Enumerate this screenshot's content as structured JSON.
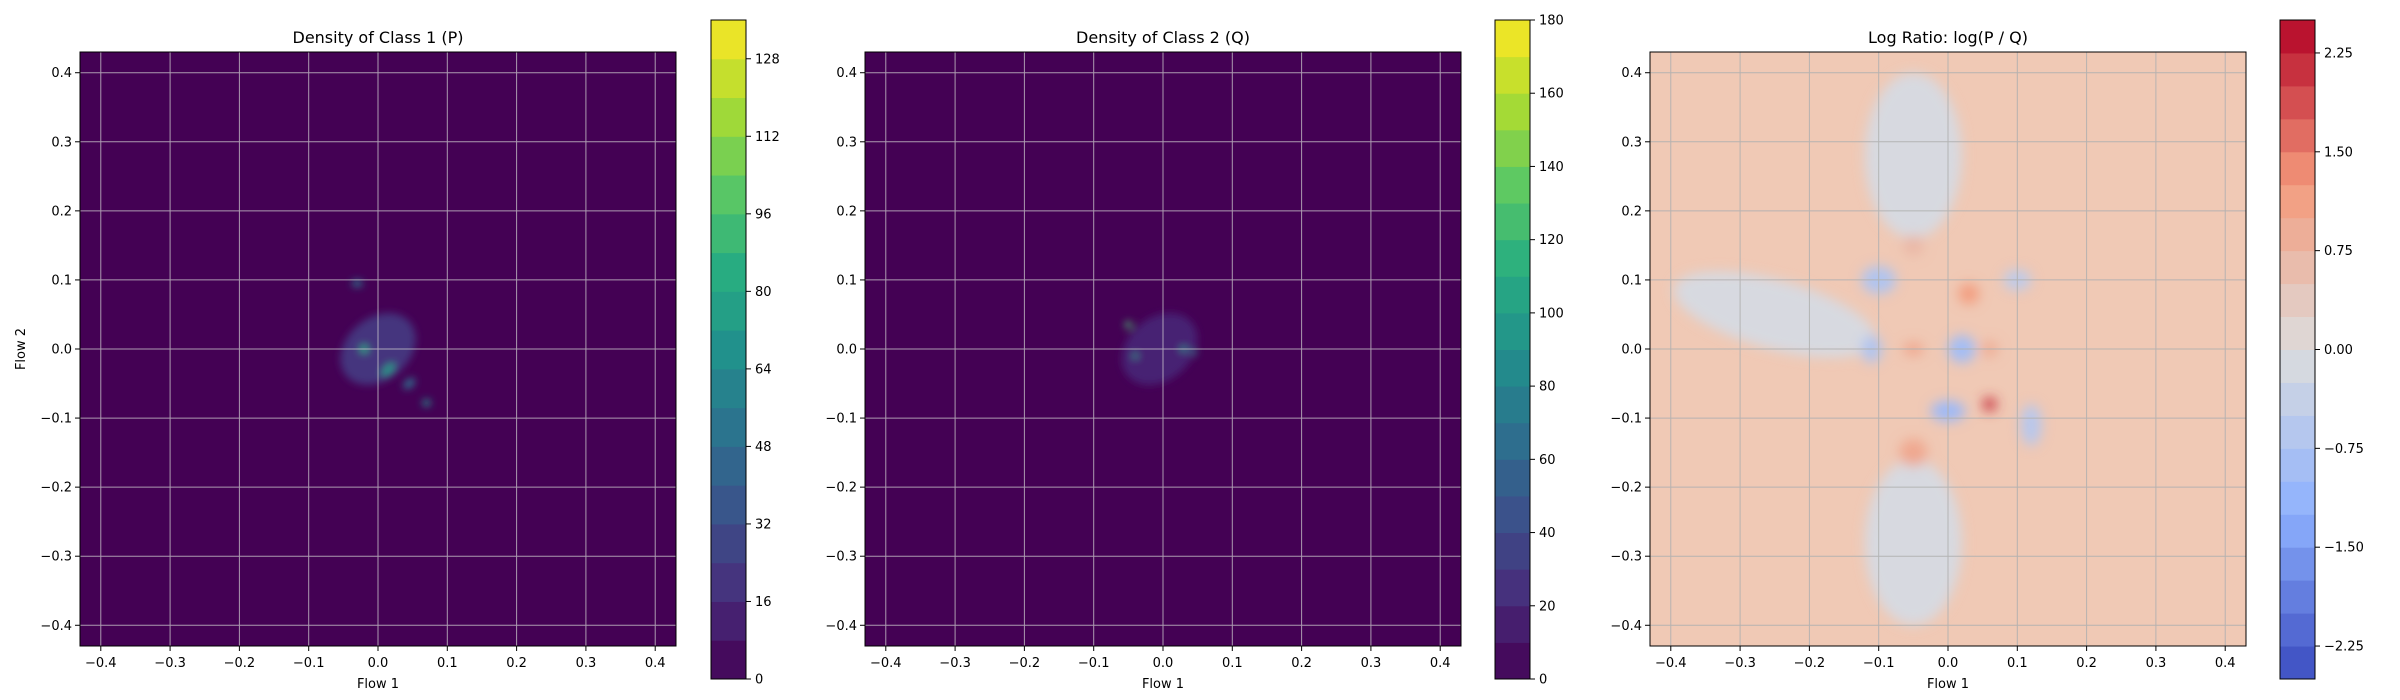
{
  "chart_data": [
    {
      "type": "heatmap",
      "title": "Density of Class 1 (P)",
      "xlabel": "Flow 1",
      "ylabel": "Flow 2",
      "xlim": [
        -0.43,
        0.43
      ],
      "ylim": [
        -0.43,
        0.43
      ],
      "xticks": [
        -0.4,
        -0.3,
        -0.2,
        -0.1,
        0.0,
        0.1,
        0.2,
        0.3,
        0.4
      ],
      "yticks": [
        -0.4,
        -0.3,
        -0.2,
        -0.1,
        0.0,
        0.1,
        0.2,
        0.3,
        0.4
      ],
      "xtick_labels": [
        "−0.4",
        "−0.3",
        "−0.2",
        "−0.1",
        "0.0",
        "0.1",
        "0.2",
        "0.3",
        "0.4"
      ],
      "ytick_labels": [
        "−0.4",
        "−0.3",
        "−0.2",
        "−0.1",
        "0.0",
        "0.1",
        "0.2",
        "0.3",
        "0.4"
      ],
      "grid": true,
      "colormap": "viridis",
      "background_color": "#440154",
      "colorbar": {
        "min": 0,
        "max": 136,
        "levels": 17,
        "ticks": [
          0,
          16,
          32,
          48,
          64,
          80,
          96,
          112,
          128
        ],
        "tick_labels": [
          "0",
          "16",
          "32",
          "48",
          "64",
          "80",
          "96",
          "112",
          "128"
        ]
      },
      "blobs": [
        {
          "x": 0.0,
          "y": 0.0,
          "sx": 0.06,
          "sy": 0.045,
          "rot": -40,
          "value": 20
        },
        {
          "x": -0.02,
          "y": 0.0,
          "sx": 0.006,
          "sy": 0.006,
          "rot": 0,
          "value": 80
        },
        {
          "x": 0.015,
          "y": -0.03,
          "sx": 0.012,
          "sy": 0.006,
          "rot": -45,
          "value": 72
        },
        {
          "x": 0.07,
          "y": -0.078,
          "sx": 0.006,
          "sy": 0.005,
          "rot": 0,
          "value": 70
        },
        {
          "x": -0.03,
          "y": 0.095,
          "sx": 0.008,
          "sy": 0.005,
          "rot": 0,
          "value": 55
        },
        {
          "x": 0.045,
          "y": -0.05,
          "sx": 0.01,
          "sy": 0.006,
          "rot": -40,
          "value": 50
        }
      ]
    },
    {
      "type": "heatmap",
      "title": "Density of Class 2 (Q)",
      "xlabel": "Flow 1",
      "ylabel": "",
      "xlim": [
        -0.43,
        0.43
      ],
      "ylim": [
        -0.43,
        0.43
      ],
      "xticks": [
        -0.4,
        -0.3,
        -0.2,
        -0.1,
        0.0,
        0.1,
        0.2,
        0.3,
        0.4
      ],
      "yticks": [
        -0.4,
        -0.3,
        -0.2,
        -0.1,
        0.0,
        0.1,
        0.2,
        0.3,
        0.4
      ],
      "xtick_labels": [
        "−0.4",
        "−0.3",
        "−0.2",
        "−0.1",
        "0.0",
        "0.1",
        "0.2",
        "0.3",
        "0.4"
      ],
      "ytick_labels": [
        "−0.4",
        "−0.3",
        "−0.2",
        "−0.1",
        "0.0",
        "0.1",
        "0.2",
        "0.3",
        "0.4"
      ],
      "grid": true,
      "colormap": "viridis",
      "background_color": "#440154",
      "colorbar": {
        "min": 0,
        "max": 180,
        "levels": 18,
        "ticks": [
          0,
          20,
          40,
          60,
          80,
          100,
          120,
          140,
          160,
          180
        ],
        "tick_labels": [
          "0",
          "20",
          "40",
          "60",
          "80",
          "100",
          "120",
          "140",
          "160",
          "180"
        ]
      },
      "blobs": [
        {
          "x": -0.005,
          "y": 0.0,
          "sx": 0.06,
          "sy": 0.045,
          "rot": -40,
          "value": 18
        },
        {
          "x": -0.05,
          "y": 0.035,
          "sx": 0.005,
          "sy": 0.005,
          "rot": 0,
          "value": 125
        },
        {
          "x": -0.04,
          "y": -0.01,
          "sx": 0.004,
          "sy": 0.004,
          "rot": 0,
          "value": 90
        },
        {
          "x": 0.03,
          "y": 0.0,
          "sx": 0.006,
          "sy": 0.004,
          "rot": 0,
          "value": 80
        },
        {
          "x": 0.045,
          "y": -0.005,
          "sx": 0.004,
          "sy": 0.004,
          "rot": 0,
          "value": 70
        }
      ]
    },
    {
      "type": "heatmap",
      "title": "Log Ratio: log(P / Q)",
      "xlabel": "Flow 1",
      "ylabel": "",
      "xlim": [
        -0.43,
        0.43
      ],
      "ylim": [
        -0.43,
        0.43
      ],
      "xticks": [
        -0.4,
        -0.3,
        -0.2,
        -0.1,
        0.0,
        0.1,
        0.2,
        0.3,
        0.4
      ],
      "yticks": [
        -0.4,
        -0.3,
        -0.2,
        -0.1,
        0.0,
        0.1,
        0.2,
        0.3,
        0.4
      ],
      "xtick_labels": [
        "−0.4",
        "−0.3",
        "−0.2",
        "−0.1",
        "0.0",
        "0.1",
        "0.2",
        "0.3",
        "0.4"
      ],
      "ytick_labels": [
        "−0.4",
        "−0.3",
        "−0.2",
        "−0.1",
        "0.0",
        "0.1",
        "0.2",
        "0.3",
        "0.4"
      ],
      "grid": true,
      "colormap": "coolwarm",
      "background_color": "#f0c9b5",
      "colorbar": {
        "min": -2.5,
        "max": 2.5,
        "levels": 20,
        "ticks": [
          -2.25,
          -1.5,
          -0.75,
          0.0,
          0.75,
          1.5,
          2.25
        ],
        "tick_labels": [
          "−2.25",
          "−1.50",
          "−0.75",
          "0.00",
          "0.75",
          "1.50",
          "2.25"
        ]
      },
      "blobs": [
        {
          "x": -0.05,
          "y": 0.28,
          "sx": 0.07,
          "sy": 0.12,
          "rot": 0,
          "value": -0.1
        },
        {
          "x": -0.05,
          "y": -0.28,
          "sx": 0.07,
          "sy": 0.12,
          "rot": 0,
          "value": -0.1
        },
        {
          "x": -0.25,
          "y": 0.05,
          "sx": 0.15,
          "sy": 0.05,
          "rot": 15,
          "value": -0.1
        },
        {
          "x": -0.1,
          "y": 0.1,
          "sx": 0.025,
          "sy": 0.02,
          "rot": 0,
          "value": -0.7
        },
        {
          "x": 0.02,
          "y": 0.0,
          "sx": 0.02,
          "sy": 0.02,
          "rot": 0,
          "value": -0.9
        },
        {
          "x": 0.0,
          "y": -0.09,
          "sx": 0.025,
          "sy": 0.015,
          "rot": 0,
          "value": -1.0
        },
        {
          "x": -0.11,
          "y": 0.0,
          "sx": 0.015,
          "sy": 0.02,
          "rot": 0,
          "value": -0.7
        },
        {
          "x": 0.12,
          "y": -0.11,
          "sx": 0.015,
          "sy": 0.03,
          "rot": 0,
          "value": -0.6
        },
        {
          "x": 0.1,
          "y": 0.1,
          "sx": 0.02,
          "sy": 0.015,
          "rot": 0,
          "value": -0.5
        },
        {
          "x": -0.05,
          "y": 0.15,
          "sx": 0.015,
          "sy": 0.015,
          "rot": 0,
          "value": 0.7
        },
        {
          "x": 0.06,
          "y": -0.08,
          "sx": 0.01,
          "sy": 0.01,
          "rot": 0,
          "value": 2.1
        },
        {
          "x": 0.03,
          "y": 0.08,
          "sx": 0.015,
          "sy": 0.015,
          "rot": 0,
          "value": 1.2
        },
        {
          "x": -0.05,
          "y": -0.15,
          "sx": 0.02,
          "sy": 0.02,
          "rot": 0,
          "value": 1.0
        },
        {
          "x": -0.05,
          "y": 0.0,
          "sx": 0.015,
          "sy": 0.01,
          "rot": 0,
          "value": 1.0
        },
        {
          "x": 0.06,
          "y": 0.0,
          "sx": 0.012,
          "sy": 0.012,
          "rot": 0,
          "value": 0.9
        }
      ]
    }
  ]
}
